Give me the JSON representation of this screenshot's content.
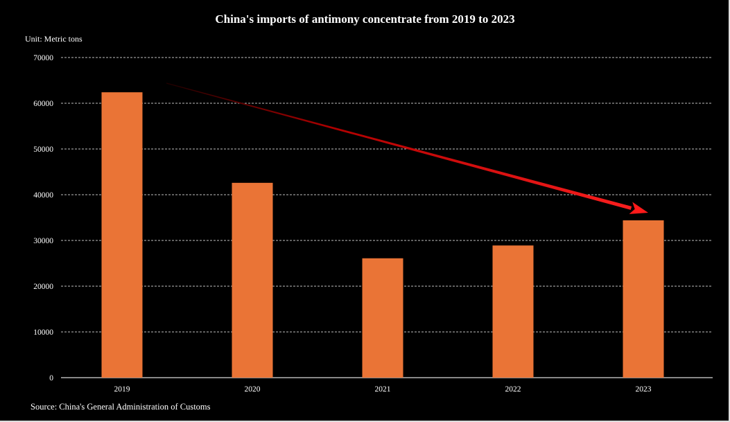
{
  "chart_data": {
    "type": "bar",
    "title": "China's imports of antimony concentrate from 2019 to 2023",
    "unit_label": "Unit: Metric tons",
    "source": "Source: China's General Administration of Customs",
    "xlabel": "",
    "ylabel": "",
    "categories": [
      "2019",
      "2020",
      "2021",
      "2022",
      "2023"
    ],
    "values": [
      62400,
      42600,
      26100,
      28900,
      34400
    ],
    "ylim": [
      0,
      70000
    ],
    "yticks": [
      0,
      10000,
      20000,
      30000,
      40000,
      50000,
      60000,
      70000
    ],
    "grid": true,
    "legend": "none",
    "annotations": [
      {
        "type": "arrow",
        "description": "downward trend arrow from 2019 to 2023",
        "color": "#ff1a1a"
      }
    ],
    "colors": {
      "bar": "#ea7436",
      "background": "#000000",
      "text": "#ffffff",
      "grid": "#ffffff",
      "arrow": "#ff1a1a"
    }
  }
}
